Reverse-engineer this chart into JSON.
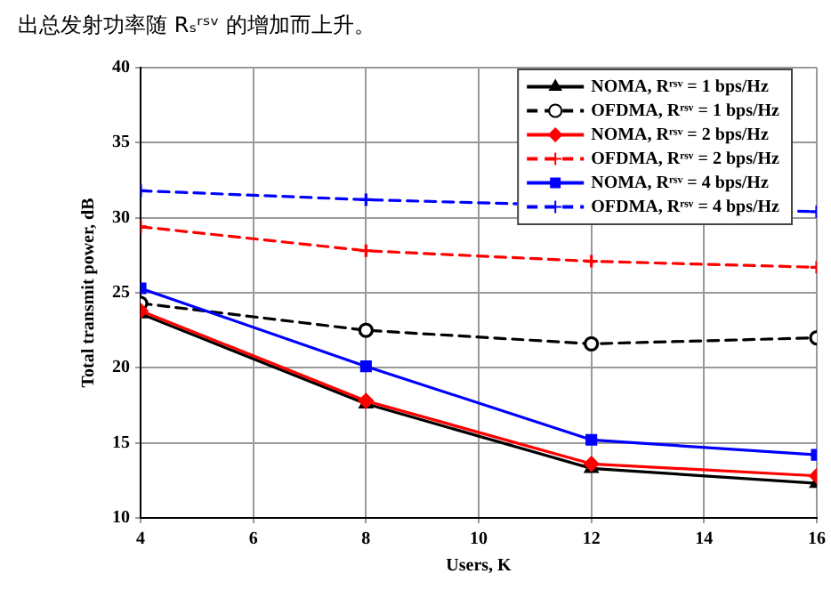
{
  "chart_data": {
    "type": "line",
    "annotations": [
      "出总发射功率随 Rₛʳˢᵛ 的增加而上升。"
    ],
    "xlabel": "Users, K",
    "ylabel": "Total transmit power, dB",
    "x": [
      4,
      8,
      12,
      16
    ],
    "xlim": [
      4,
      16
    ],
    "xticks": [
      4,
      6,
      8,
      10,
      12,
      14,
      16
    ],
    "ylim": [
      10,
      40
    ],
    "yticks": [
      10,
      15,
      20,
      25,
      30,
      35,
      40
    ],
    "grid": true,
    "legend": "top right",
    "series": [
      {
        "name": "NOMA, Rʳˢᵛ = 1 bps/Hz",
        "color": "#000000",
        "values": [
          23.6,
          17.6,
          13.3,
          12.3
        ],
        "marker": "triangle",
        "line_style": "solid"
      },
      {
        "name": "OFDMA, Rʳˢᵛ = 1 bps/Hz",
        "color": "#000000",
        "values": [
          24.3,
          22.5,
          21.6,
          22.0
        ],
        "marker": "circle",
        "line_style": "dashed"
      },
      {
        "name": "NOMA, Rʳˢᵛ = 2 bps/Hz",
        "color": "#ff0000",
        "values": [
          23.8,
          17.8,
          13.6,
          12.8
        ],
        "marker": "diamond",
        "line_style": "solid"
      },
      {
        "name": "OFDMA, Rʳˢᵛ = 2 bps/Hz",
        "color": "#ff0000",
        "values": [
          29.4,
          27.8,
          27.1,
          26.7
        ],
        "marker": "cross",
        "line_style": "dashed"
      },
      {
        "name": "NOMA, Rʳˢᵛ = 4 bps/Hz",
        "color": "#0000ff",
        "values": [
          25.3,
          20.1,
          15.2,
          14.2
        ],
        "marker": "square",
        "line_style": "solid"
      },
      {
        "name": "OFDMA, Rʳˢᵛ = 4 bps/Hz",
        "color": "#0000ff",
        "values": [
          31.8,
          31.2,
          null,
          30.4
        ],
        "marker": "cross",
        "line_style": "dashed"
      }
    ]
  }
}
